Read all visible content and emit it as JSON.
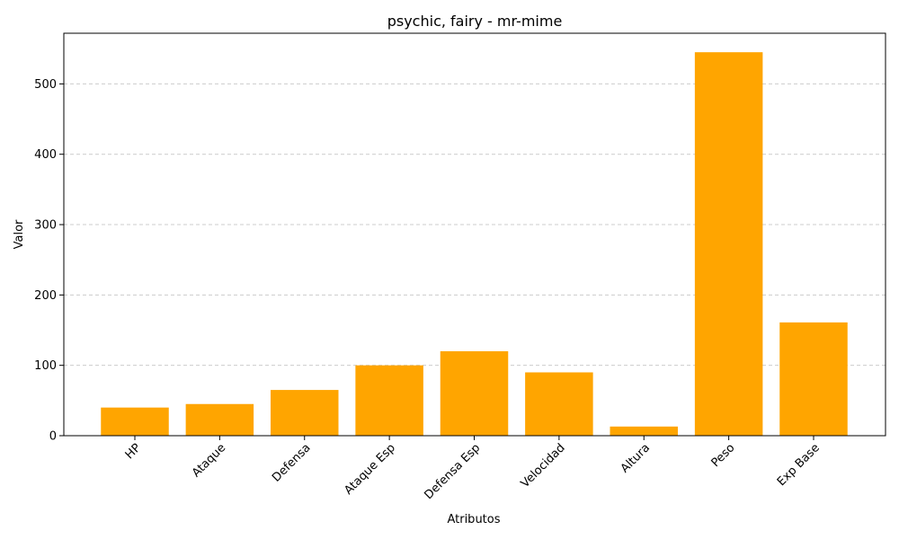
{
  "chart_data": {
    "type": "bar",
    "title": "psychic, fairy - mr-mime",
    "xlabel": "Atributos",
    "ylabel": "Valor",
    "categories": [
      "HP",
      "Ataque",
      "Defensa",
      "Ataque Esp",
      "Defensa Esp",
      "Velocidad",
      "Altura",
      "Peso",
      "Exp Base"
    ],
    "values": [
      40,
      45,
      65,
      100,
      120,
      90,
      13,
      545,
      161
    ],
    "ylim": [
      0,
      572
    ],
    "yticks": [
      0,
      100,
      200,
      300,
      400,
      500
    ],
    "grid": "y-dashed",
    "bar_color": "#FFA500",
    "legend": "none"
  }
}
